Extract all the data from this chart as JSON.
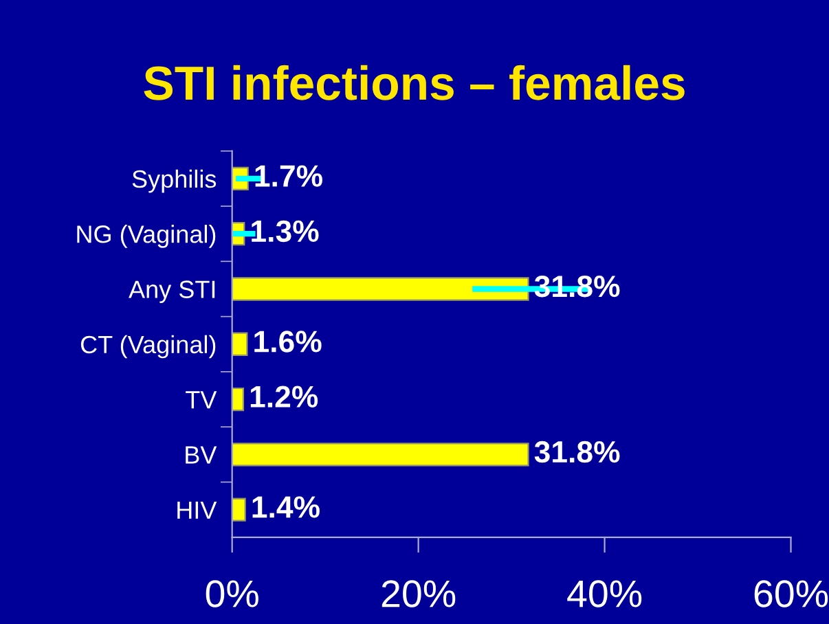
{
  "chart_data": {
    "type": "bar",
    "orientation": "horizontal",
    "title": "STI infections – females",
    "categories": [
      "Syphilis",
      "NG (Vaginal)",
      "Any STI",
      "CT (Vaginal)",
      "TV",
      "BV",
      "HIV"
    ],
    "values": [
      1.7,
      1.3,
      31.8,
      1.6,
      1.2,
      31.8,
      1.4
    ],
    "value_labels": [
      "1.7%",
      "1.3%",
      "31.8%",
      "1.6%",
      "1.2%",
      "31.8%",
      "1.4%"
    ],
    "errors": [
      [
        0.4,
        3.4
      ],
      [
        0.1,
        2.5
      ],
      [
        25.8,
        38.4
      ],
      null,
      null,
      null,
      null
    ],
    "color": "#ffff00",
    "xlim": [
      0,
      60
    ],
    "xticks": [
      {
        "value": 0,
        "label": "0%"
      },
      {
        "value": 20,
        "label": "20%"
      },
      {
        "value": 40,
        "label": "40%"
      },
      {
        "value": 60,
        "label": "60%"
      }
    ],
    "grid": false,
    "legend": false
  }
}
